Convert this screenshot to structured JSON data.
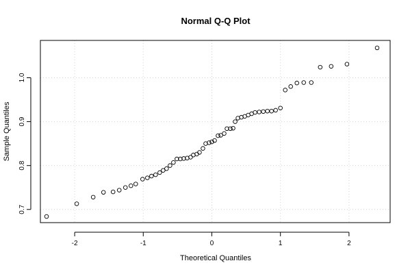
{
  "chart_data": {
    "type": "scatter",
    "title": "Normal Q-Q Plot",
    "xlabel": "Theoretical Quantiles",
    "ylabel": "Sample Quantiles",
    "xlim": [
      -2.5,
      2.6
    ],
    "ylim": [
      0.67,
      1.085
    ],
    "grid": true,
    "x_ticks": [
      -2,
      -1,
      0,
      1,
      2
    ],
    "x_tick_labels": [
      "-2",
      "-1",
      "0",
      "1",
      "2"
    ],
    "y_ticks": [
      0.7,
      0.8,
      0.9,
      1.0
    ],
    "y_tick_labels": [
      "0.7",
      "0.8",
      "0.9",
      "1.0"
    ],
    "x": [
      -2.41,
      -1.97,
      -1.73,
      -1.58,
      -1.44,
      -1.35,
      -1.26,
      -1.18,
      -1.11,
      -1.01,
      -0.94,
      -0.88,
      -0.82,
      -0.76,
      -0.71,
      -0.66,
      -0.61,
      -0.56,
      -0.51,
      -0.46,
      -0.41,
      -0.36,
      -0.31,
      -0.27,
      -0.22,
      -0.18,
      -0.13,
      -0.09,
      -0.04,
      0.0,
      0.04,
      0.09,
      0.13,
      0.18,
      0.22,
      0.27,
      0.31,
      0.34,
      0.38,
      0.43,
      0.48,
      0.53,
      0.58,
      0.63,
      0.69,
      0.75,
      0.81,
      0.87,
      0.93,
      1.0,
      1.07,
      1.15,
      1.24,
      1.34,
      1.45,
      1.58,
      1.74,
      1.97,
      2.41
    ],
    "y": [
      0.684,
      0.713,
      0.728,
      0.739,
      0.74,
      0.744,
      0.75,
      0.754,
      0.758,
      0.769,
      0.772,
      0.776,
      0.779,
      0.784,
      0.789,
      0.793,
      0.8,
      0.807,
      0.815,
      0.815,
      0.816,
      0.817,
      0.819,
      0.824,
      0.826,
      0.83,
      0.839,
      0.85,
      0.852,
      0.854,
      0.857,
      0.868,
      0.869,
      0.873,
      0.884,
      0.884,
      0.885,
      0.9,
      0.908,
      0.91,
      0.912,
      0.915,
      0.918,
      0.921,
      0.922,
      0.923,
      0.924,
      0.924,
      0.926,
      0.931,
      0.972,
      0.98,
      0.988,
      0.989,
      0.989,
      1.024,
      1.026,
      1.031,
      1.068
    ]
  }
}
